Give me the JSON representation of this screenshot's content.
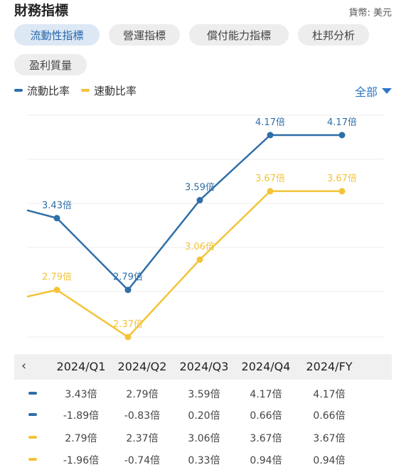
{
  "header": {
    "title": "財務指標",
    "currency": "貨幣: 美元"
  },
  "tabs": [
    {
      "label": "流動性指標",
      "active": true
    },
    {
      "label": "營運指標",
      "active": false
    },
    {
      "label": "償付能力指標",
      "active": false
    },
    {
      "label": "杜邦分析",
      "active": false
    },
    {
      "label": "盈利質量",
      "active": false
    }
  ],
  "filter": {
    "label": "全部"
  },
  "colors": {
    "blue": "#2f6fa8",
    "yellow": "#f3c338",
    "active_tab_bg": "#dde8f5"
  },
  "chart_data": {
    "type": "line",
    "categories": [
      "2024/Q1",
      "2024/Q2",
      "2024/Q3",
      "2024/Q4",
      "2024/FY"
    ],
    "series": [
      {
        "name": "流動比率",
        "color": "#2f6fa8",
        "values": [
          3.43,
          2.79,
          3.59,
          4.17,
          4.17
        ],
        "labels": [
          "3.43倍",
          "2.79倍",
          "3.59倍",
          "4.17倍",
          "4.17倍"
        ]
      },
      {
        "name": "速動比率",
        "color": "#f3c338",
        "values": [
          2.79,
          2.37,
          3.06,
          3.67,
          3.67
        ],
        "labels": [
          "2.79倍",
          "2.37倍",
          "3.06倍",
          "3.67倍",
          "3.67倍"
        ]
      }
    ],
    "legend": "top-left",
    "grid": true
  },
  "table": {
    "prev_icon": "‹",
    "columns": [
      "2024/Q1",
      "2024/Q2",
      "2024/Q3",
      "2024/Q4",
      "2024/FY"
    ],
    "rows": [
      {
        "color": "#2f6fa8",
        "values": [
          "3.43倍",
          "2.79倍",
          "3.59倍",
          "4.17倍",
          "4.17倍"
        ]
      },
      {
        "color": "#2f6fa8",
        "values": [
          "-1.89倍",
          "-0.83倍",
          "0.20倍",
          "0.66倍",
          "0.66倍"
        ]
      },
      {
        "color": "#f3c338",
        "values": [
          "2.79倍",
          "2.37倍",
          "3.06倍",
          "3.67倍",
          "3.67倍"
        ]
      },
      {
        "color": "#f3c338",
        "values": [
          "-1.96倍",
          "-0.74倍",
          "0.33倍",
          "0.94倍",
          "0.94倍"
        ]
      }
    ]
  }
}
